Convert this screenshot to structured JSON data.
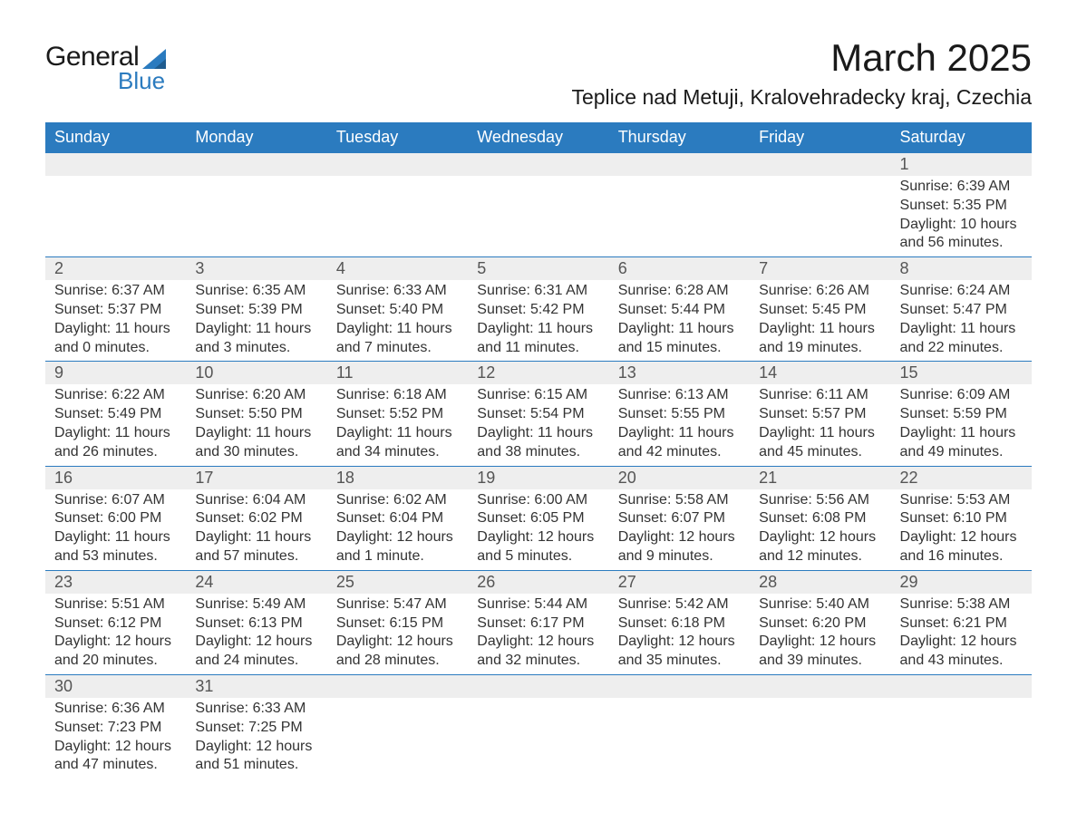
{
  "logo": {
    "text1": "General",
    "text2": "Blue",
    "shape_color": "#2b7bbf",
    "text1_color": "#1a1a1a",
    "text2_color": "#2b7bbf"
  },
  "title": "March 2025",
  "location": "Teplice nad Metuji, Kralovehradecky kraj, Czechia",
  "colors": {
    "header_bg": "#2b7bbf",
    "header_text": "#ffffff",
    "daynum_bg": "#eeeeee",
    "border": "#2b7bbf",
    "body_text": "#333333"
  },
  "weekdays": [
    "Sunday",
    "Monday",
    "Tuesday",
    "Wednesday",
    "Thursday",
    "Friday",
    "Saturday"
  ],
  "weeks": [
    [
      null,
      null,
      null,
      null,
      null,
      null,
      {
        "n": "1",
        "sunrise": "6:39 AM",
        "sunset": "5:35 PM",
        "daylight": "10 hours and 56 minutes."
      }
    ],
    [
      {
        "n": "2",
        "sunrise": "6:37 AM",
        "sunset": "5:37 PM",
        "daylight": "11 hours and 0 minutes."
      },
      {
        "n": "3",
        "sunrise": "6:35 AM",
        "sunset": "5:39 PM",
        "daylight": "11 hours and 3 minutes."
      },
      {
        "n": "4",
        "sunrise": "6:33 AM",
        "sunset": "5:40 PM",
        "daylight": "11 hours and 7 minutes."
      },
      {
        "n": "5",
        "sunrise": "6:31 AM",
        "sunset": "5:42 PM",
        "daylight": "11 hours and 11 minutes."
      },
      {
        "n": "6",
        "sunrise": "6:28 AM",
        "sunset": "5:44 PM",
        "daylight": "11 hours and 15 minutes."
      },
      {
        "n": "7",
        "sunrise": "6:26 AM",
        "sunset": "5:45 PM",
        "daylight": "11 hours and 19 minutes."
      },
      {
        "n": "8",
        "sunrise": "6:24 AM",
        "sunset": "5:47 PM",
        "daylight": "11 hours and 22 minutes."
      }
    ],
    [
      {
        "n": "9",
        "sunrise": "6:22 AM",
        "sunset": "5:49 PM",
        "daylight": "11 hours and 26 minutes."
      },
      {
        "n": "10",
        "sunrise": "6:20 AM",
        "sunset": "5:50 PM",
        "daylight": "11 hours and 30 minutes."
      },
      {
        "n": "11",
        "sunrise": "6:18 AM",
        "sunset": "5:52 PM",
        "daylight": "11 hours and 34 minutes."
      },
      {
        "n": "12",
        "sunrise": "6:15 AM",
        "sunset": "5:54 PM",
        "daylight": "11 hours and 38 minutes."
      },
      {
        "n": "13",
        "sunrise": "6:13 AM",
        "sunset": "5:55 PM",
        "daylight": "11 hours and 42 minutes."
      },
      {
        "n": "14",
        "sunrise": "6:11 AM",
        "sunset": "5:57 PM",
        "daylight": "11 hours and 45 minutes."
      },
      {
        "n": "15",
        "sunrise": "6:09 AM",
        "sunset": "5:59 PM",
        "daylight": "11 hours and 49 minutes."
      }
    ],
    [
      {
        "n": "16",
        "sunrise": "6:07 AM",
        "sunset": "6:00 PM",
        "daylight": "11 hours and 53 minutes."
      },
      {
        "n": "17",
        "sunrise": "6:04 AM",
        "sunset": "6:02 PM",
        "daylight": "11 hours and 57 minutes."
      },
      {
        "n": "18",
        "sunrise": "6:02 AM",
        "sunset": "6:04 PM",
        "daylight": "12 hours and 1 minute."
      },
      {
        "n": "19",
        "sunrise": "6:00 AM",
        "sunset": "6:05 PM",
        "daylight": "12 hours and 5 minutes."
      },
      {
        "n": "20",
        "sunrise": "5:58 AM",
        "sunset": "6:07 PM",
        "daylight": "12 hours and 9 minutes."
      },
      {
        "n": "21",
        "sunrise": "5:56 AM",
        "sunset": "6:08 PM",
        "daylight": "12 hours and 12 minutes."
      },
      {
        "n": "22",
        "sunrise": "5:53 AM",
        "sunset": "6:10 PM",
        "daylight": "12 hours and 16 minutes."
      }
    ],
    [
      {
        "n": "23",
        "sunrise": "5:51 AM",
        "sunset": "6:12 PM",
        "daylight": "12 hours and 20 minutes."
      },
      {
        "n": "24",
        "sunrise": "5:49 AM",
        "sunset": "6:13 PM",
        "daylight": "12 hours and 24 minutes."
      },
      {
        "n": "25",
        "sunrise": "5:47 AM",
        "sunset": "6:15 PM",
        "daylight": "12 hours and 28 minutes."
      },
      {
        "n": "26",
        "sunrise": "5:44 AM",
        "sunset": "6:17 PM",
        "daylight": "12 hours and 32 minutes."
      },
      {
        "n": "27",
        "sunrise": "5:42 AM",
        "sunset": "6:18 PM",
        "daylight": "12 hours and 35 minutes."
      },
      {
        "n": "28",
        "sunrise": "5:40 AM",
        "sunset": "6:20 PM",
        "daylight": "12 hours and 39 minutes."
      },
      {
        "n": "29",
        "sunrise": "5:38 AM",
        "sunset": "6:21 PM",
        "daylight": "12 hours and 43 minutes."
      }
    ],
    [
      {
        "n": "30",
        "sunrise": "6:36 AM",
        "sunset": "7:23 PM",
        "daylight": "12 hours and 47 minutes."
      },
      {
        "n": "31",
        "sunrise": "6:33 AM",
        "sunset": "7:25 PM",
        "daylight": "12 hours and 51 minutes."
      },
      null,
      null,
      null,
      null,
      null
    ]
  ],
  "labels": {
    "sunrise": "Sunrise: ",
    "sunset": "Sunset: ",
    "daylight": "Daylight: "
  }
}
